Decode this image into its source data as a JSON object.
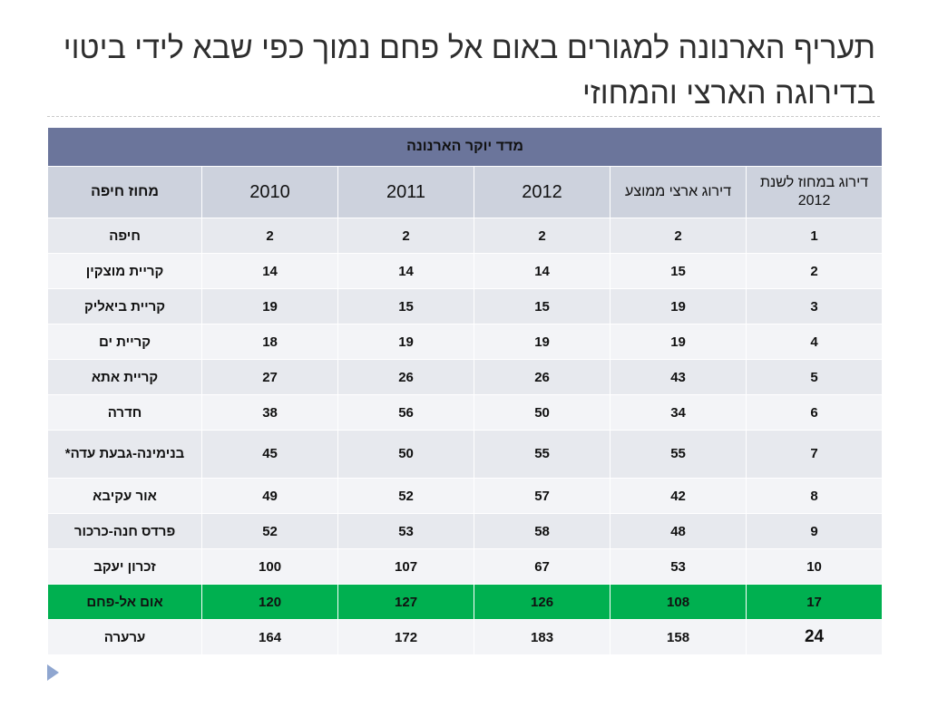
{
  "title": "תעריף הארנונה למגורים באום אל פחם נמוך כפי שבא לידי ביטוי בדירוגה הארצי והמחוזי",
  "table": {
    "caption": "מדד יוקר הארנונה",
    "columns": {
      "city": "מחוז חיפה",
      "y2010": "2010",
      "y2011": "2011",
      "y2012": "2012",
      "national_rank": "דירוג ארצי ממוצע",
      "district_rank": "דירוג במחוז לשנת 2012"
    },
    "rows": [
      {
        "city": "חיפה",
        "y2010": "2",
        "y2011": "2",
        "y2012": "2",
        "national_rank": "2",
        "district_rank": "1"
      },
      {
        "city": "קריית מוצקין",
        "y2010": "14",
        "y2011": "14",
        "y2012": "14",
        "national_rank": "15",
        "district_rank": "2"
      },
      {
        "city": "קריית ביאליק",
        "y2010": "19",
        "y2011": "15",
        "y2012": "15",
        "national_rank": "19",
        "district_rank": "3"
      },
      {
        "city": "קריית ים",
        "y2010": "18",
        "y2011": "19",
        "y2012": "19",
        "national_rank": "19",
        "district_rank": "4"
      },
      {
        "city": "קריית אתא",
        "y2010": "27",
        "y2011": "26",
        "y2012": "26",
        "national_rank": "43",
        "district_rank": "5"
      },
      {
        "city": "חדרה",
        "y2010": "38",
        "y2011": "56",
        "y2012": "50",
        "national_rank": "34",
        "district_rank": "6"
      },
      {
        "city": "בנימינה-גבעת עדה*",
        "y2010": "45",
        "y2011": "50",
        "y2012": "55",
        "national_rank": "55",
        "district_rank": "7"
      },
      {
        "city": "אור עקיבא",
        "y2010": "49",
        "y2011": "52",
        "y2012": "57",
        "national_rank": "42",
        "district_rank": "8"
      },
      {
        "city": "פרדס חנה-כרכור",
        "y2010": "52",
        "y2011": "53",
        "y2012": "58",
        "national_rank": "48",
        "district_rank": "9"
      },
      {
        "city": "זכרון יעקב",
        "y2010": "100",
        "y2011": "107",
        "y2012": "67",
        "national_rank": "53",
        "district_rank": "10"
      },
      {
        "city": "אום אל-פחם",
        "y2010": "120",
        "y2011": "127",
        "y2012": "126",
        "national_rank": "108",
        "district_rank": "17"
      },
      {
        "city": "ערערה",
        "y2010": "164",
        "y2011": "172",
        "y2012": "183",
        "national_rank": "158",
        "district_rank": "24"
      }
    ]
  },
  "colors": {
    "header_band": "#6b759b",
    "column_header": "#cdd2dd",
    "row_even": "#e7e9ee",
    "row_odd": "#f3f4f7",
    "highlight": "#00b050",
    "bullet": "#8fa6d0"
  },
  "icons": {
    "slide_bullet": "triangle-right-icon"
  }
}
